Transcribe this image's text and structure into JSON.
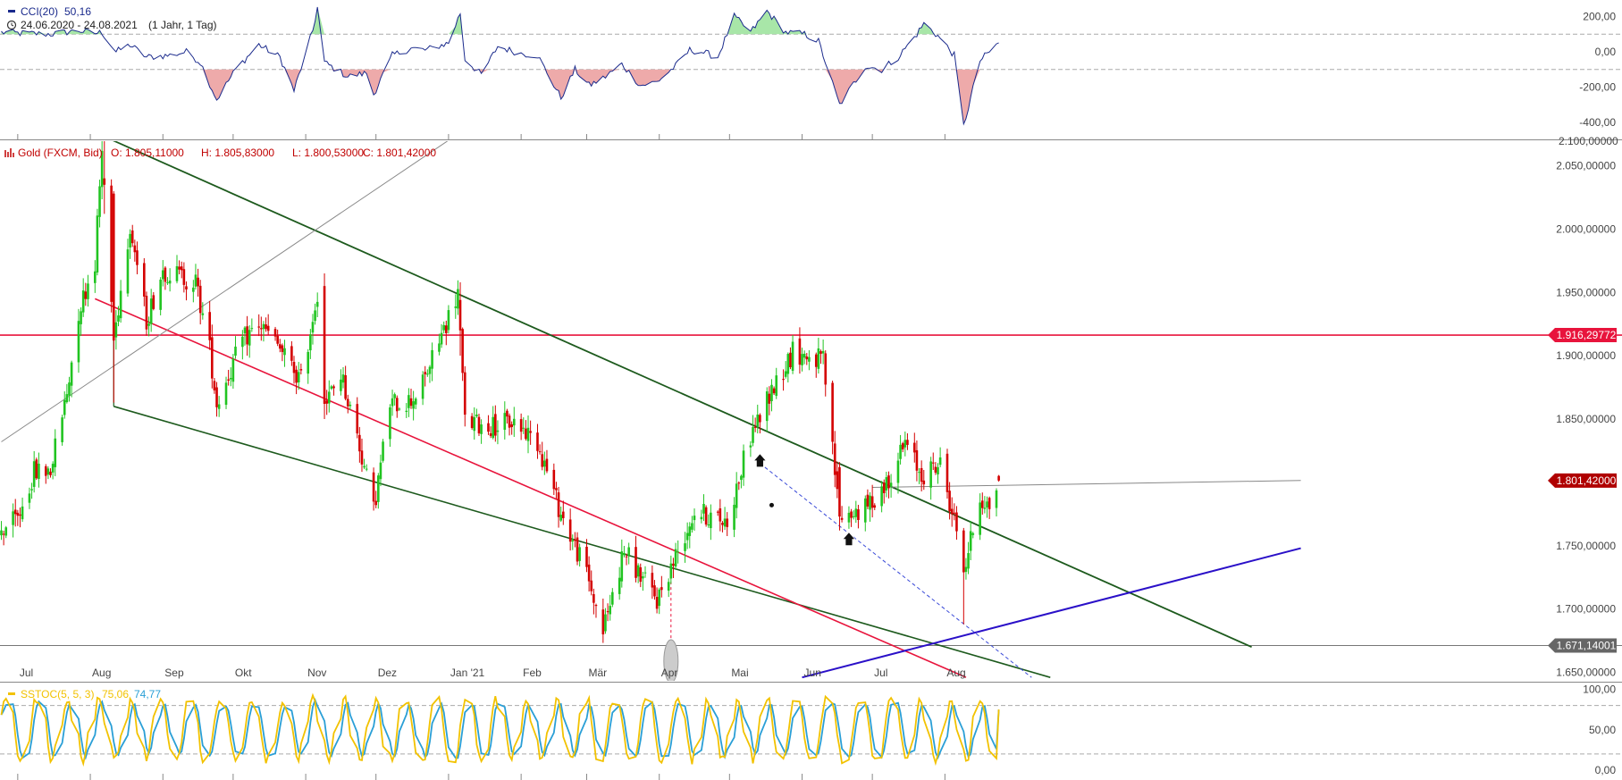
{
  "colors": {
    "up": "#21c421",
    "down": "#d40000",
    "cci_line": "#1a2a8c",
    "cci_pos_fill": "#a8e6a8",
    "cci_neg_fill": "#eeaaaa",
    "hline_red": "#e8143c",
    "channel_green": "#1d5a1d",
    "trend_blue": "#2a10c8",
    "badge_red": "#e8143c",
    "badge_dark_red": "#b00000",
    "badge_gray": "#666666",
    "stoch_k": "#f2c200",
    "stoch_d": "#2a9fd6"
  },
  "cci_panel": {
    "indicator_label": "CCI(20)",
    "indicator_value": "50,16",
    "date_range": "24.06.2020 - 24.08.2021",
    "period": "(1 Jahr, 1 Tag)",
    "clock_icon": "clock-icon",
    "y_ticks": [
      "200,00",
      "0,00",
      "-200,00",
      "-400,00"
    ],
    "y_tick_values": [
      200,
      0,
      -200,
      -400
    ],
    "levels": [
      100,
      -100
    ],
    "ylim": [
      -470,
      260
    ]
  },
  "price_panel": {
    "instrument_label": "Gold (FXCM, Bid)",
    "instrument_icon": "chart-icon",
    "open": "O: 1.805,11000",
    "high": "H: 1.805,83000",
    "low": "L: 1.800,53000",
    "close": "C: 1.801,42000",
    "y_ticks": [
      "2.050,00000",
      "2.000,00000",
      "1.950,00000",
      "1.900,00000",
      "1.850,00000",
      "1.800,00000",
      "1.750,00000",
      "1.700,00000",
      "1.650,00000"
    ],
    "y_tick_values": [
      2050,
      2000,
      1950,
      1900,
      1850,
      1800,
      1750,
      1700,
      1650
    ],
    "top_partial_tick": "2.100,00000",
    "badges": [
      {
        "text": "1.916,29772",
        "value": 1916.29772,
        "color": "#e8143c"
      },
      {
        "text": "1.801,42000",
        "value": 1801.42,
        "color": "#b00000"
      },
      {
        "text": "1.671,14001",
        "value": 1671.14001,
        "color": "#666666"
      }
    ],
    "months": [
      "Jul",
      "Aug",
      "Sep",
      "Okt",
      "Nov",
      "Dez",
      "Jan '21",
      "Feb",
      "Mär",
      "Apr",
      "Mai",
      "Jun",
      "Jul",
      "Aug"
    ]
  },
  "stoch_panel": {
    "indicator_label": "SSTOC(5, 5, 3)",
    "k_value": "75,06",
    "d_value": "74,77",
    "y_ticks": [
      "100,00",
      "50,00",
      "0,00"
    ],
    "y_tick_values": [
      100,
      50,
      0
    ],
    "levels": [
      80,
      20
    ]
  },
  "chart_data": {
    "type": "candlestick",
    "instrument": "Gold (FXCM, Bid)",
    "date_range": "24.06.2020 - 24.08.2021",
    "ylim": [
      1645,
      2100
    ],
    "close_anchors": [
      [
        "2020-06-24",
        1762
      ],
      [
        "2020-07-01",
        1771
      ],
      [
        "2020-07-08",
        1808
      ],
      [
        "2020-07-15",
        1810
      ],
      [
        "2020-07-22",
        1870
      ],
      [
        "2020-07-27",
        1935
      ],
      [
        "2020-08-03",
        1975
      ],
      [
        "2020-08-06",
        2062
      ],
      [
        "2020-08-07",
        2035
      ],
      [
        "2020-08-11",
        1912
      ],
      [
        "2020-08-18",
        2005
      ],
      [
        "2020-08-25",
        1928
      ],
      [
        "2020-09-01",
        1968
      ],
      [
        "2020-09-15",
        1958
      ],
      [
        "2020-09-21",
        1905
      ],
      [
        "2020-09-24",
        1862
      ],
      [
        "2020-10-05",
        1912
      ],
      [
        "2020-10-12",
        1925
      ],
      [
        "2020-10-20",
        1908
      ],
      [
        "2020-10-30",
        1880
      ],
      [
        "2020-11-06",
        1951
      ],
      [
        "2020-11-09",
        1860
      ],
      [
        "2020-11-16",
        1886
      ],
      [
        "2020-11-23",
        1837
      ],
      [
        "2020-11-30",
        1778
      ],
      [
        "2020-12-07",
        1862
      ],
      [
        "2020-12-16",
        1865
      ],
      [
        "2020-12-21",
        1878
      ],
      [
        "2021-01-05",
        1950
      ],
      [
        "2021-01-08",
        1848
      ],
      [
        "2021-01-18",
        1844
      ],
      [
        "2021-01-29",
        1848
      ],
      [
        "2021-02-08",
        1832
      ],
      [
        "2021-02-18",
        1775
      ],
      [
        "2021-03-01",
        1728
      ],
      [
        "2021-03-08",
        1683
      ],
      [
        "2021-03-17",
        1746
      ],
      [
        "2021-03-31",
        1707
      ],
      [
        "2021-04-16",
        1777
      ],
      [
        "2021-04-30",
        1769
      ],
      [
        "2021-05-10",
        1837
      ],
      [
        "2021-05-20",
        1876
      ],
      [
        "2021-05-28",
        1903
      ],
      [
        "2021-06-10",
        1896
      ],
      [
        "2021-06-17",
        1773
      ],
      [
        "2021-06-28",
        1779
      ],
      [
        "2021-07-06",
        1797
      ],
      [
        "2021-07-15",
        1830
      ],
      [
        "2021-07-22",
        1806
      ],
      [
        "2021-07-30",
        1814
      ],
      [
        "2021-08-06",
        1763
      ],
      [
        "2021-08-09",
        1729
      ],
      [
        "2021-08-16",
        1788
      ],
      [
        "2021-08-20",
        1781
      ],
      [
        "2021-08-24",
        1801.42
      ]
    ],
    "drawn_lines": [
      {
        "name": "channel-upper-green",
        "from": [
          "2020-08-07",
          2073
        ],
        "to": [
          "2021-12-10",
          1670
        ]
      },
      {
        "name": "channel-lower-green",
        "from": [
          "2020-08-11",
          1860
        ],
        "to": [
          "2021-09-15",
          1646
        ]
      },
      {
        "name": "trend-red",
        "from": [
          "2020-08-03",
          1945
        ],
        "to": [
          "2021-08-10",
          1646
        ]
      },
      {
        "name": "trend-gray",
        "from": [
          "2020-06-24",
          1832
        ],
        "to": [
          "2021-01-25",
          2100
        ]
      },
      {
        "name": "trend-blue",
        "from": [
          "2021-06-01",
          1646
        ],
        "to": [
          "2021-12-31",
          1748
        ]
      },
      {
        "name": "support-gray",
        "from": [
          "2021-07-01",
          1796
        ],
        "to": [
          "2021-12-31",
          1801.5
        ]
      },
      {
        "name": "dashed-blue",
        "from": [
          "2021-05-14",
          1815
        ],
        "to": [
          "2021-09-07",
          1646
        ]
      }
    ],
    "horizontal_lines": [
      1916.29772,
      1671.14001
    ],
    "cci": {
      "anchors": [
        [
          "2020-06-24",
          110
        ],
        [
          "2020-07-01",
          105
        ],
        [
          "2020-07-15",
          100
        ],
        [
          "2020-07-27",
          120
        ],
        [
          "2020-08-03",
          105
        ],
        [
          "2020-08-06",
          110
        ],
        [
          "2020-08-12",
          0
        ],
        [
          "2020-08-18",
          40
        ],
        [
          "2020-08-25",
          -30
        ],
        [
          "2020-09-04",
          -20
        ],
        [
          "2020-09-11",
          0
        ],
        [
          "2020-09-17",
          -60
        ],
        [
          "2020-09-24",
          -270
        ],
        [
          "2020-10-02",
          -100
        ],
        [
          "2020-10-12",
          40
        ],
        [
          "2020-10-21",
          -30
        ],
        [
          "2020-10-27",
          -220
        ],
        [
          "2020-11-04",
          120
        ],
        [
          "2020-11-06",
          250
        ],
        [
          "2020-11-09",
          -60
        ],
        [
          "2020-11-19",
          -140
        ],
        [
          "2020-11-27",
          -120
        ],
        [
          "2020-11-30",
          -240
        ],
        [
          "2020-12-08",
          -20
        ],
        [
          "2020-12-16",
          20
        ],
        [
          "2020-12-22",
          10
        ],
        [
          "2021-01-01",
          50
        ],
        [
          "2021-01-06",
          220
        ],
        [
          "2021-01-08",
          -40
        ],
        [
          "2021-01-15",
          -130
        ],
        [
          "2021-01-22",
          30
        ],
        [
          "2021-02-01",
          -10
        ],
        [
          "2021-02-08",
          -20
        ],
        [
          "2021-02-18",
          -260
        ],
        [
          "2021-02-24",
          -100
        ],
        [
          "2021-03-02",
          -190
        ],
        [
          "2021-03-08",
          -150
        ],
        [
          "2021-03-16",
          -70
        ],
        [
          "2021-03-24",
          -190
        ],
        [
          "2021-03-31",
          -170
        ],
        [
          "2021-04-08",
          -80
        ],
        [
          "2021-04-14",
          10
        ],
        [
          "2021-04-19",
          0
        ],
        [
          "2021-04-26",
          -30
        ],
        [
          "2021-05-03",
          200
        ],
        [
          "2021-05-10",
          110
        ],
        [
          "2021-05-17",
          230
        ],
        [
          "2021-05-25",
          110
        ],
        [
          "2021-06-02",
          100
        ],
        [
          "2021-06-08",
          60
        ],
        [
          "2021-06-17",
          -300
        ],
        [
          "2021-06-28",
          -80
        ],
        [
          "2021-07-05",
          -100
        ],
        [
          "2021-07-12",
          -30
        ],
        [
          "2021-07-20",
          100
        ],
        [
          "2021-07-23",
          160
        ],
        [
          "2021-07-29",
          90
        ],
        [
          "2021-08-05",
          -20
        ],
        [
          "2021-08-09",
          -420
        ],
        [
          "2021-08-16",
          -50
        ],
        [
          "2021-08-24",
          50
        ]
      ]
    },
    "stochastic": {
      "k_last": 75.06,
      "d_last": 74.77,
      "range": [
        0,
        100
      ]
    }
  }
}
